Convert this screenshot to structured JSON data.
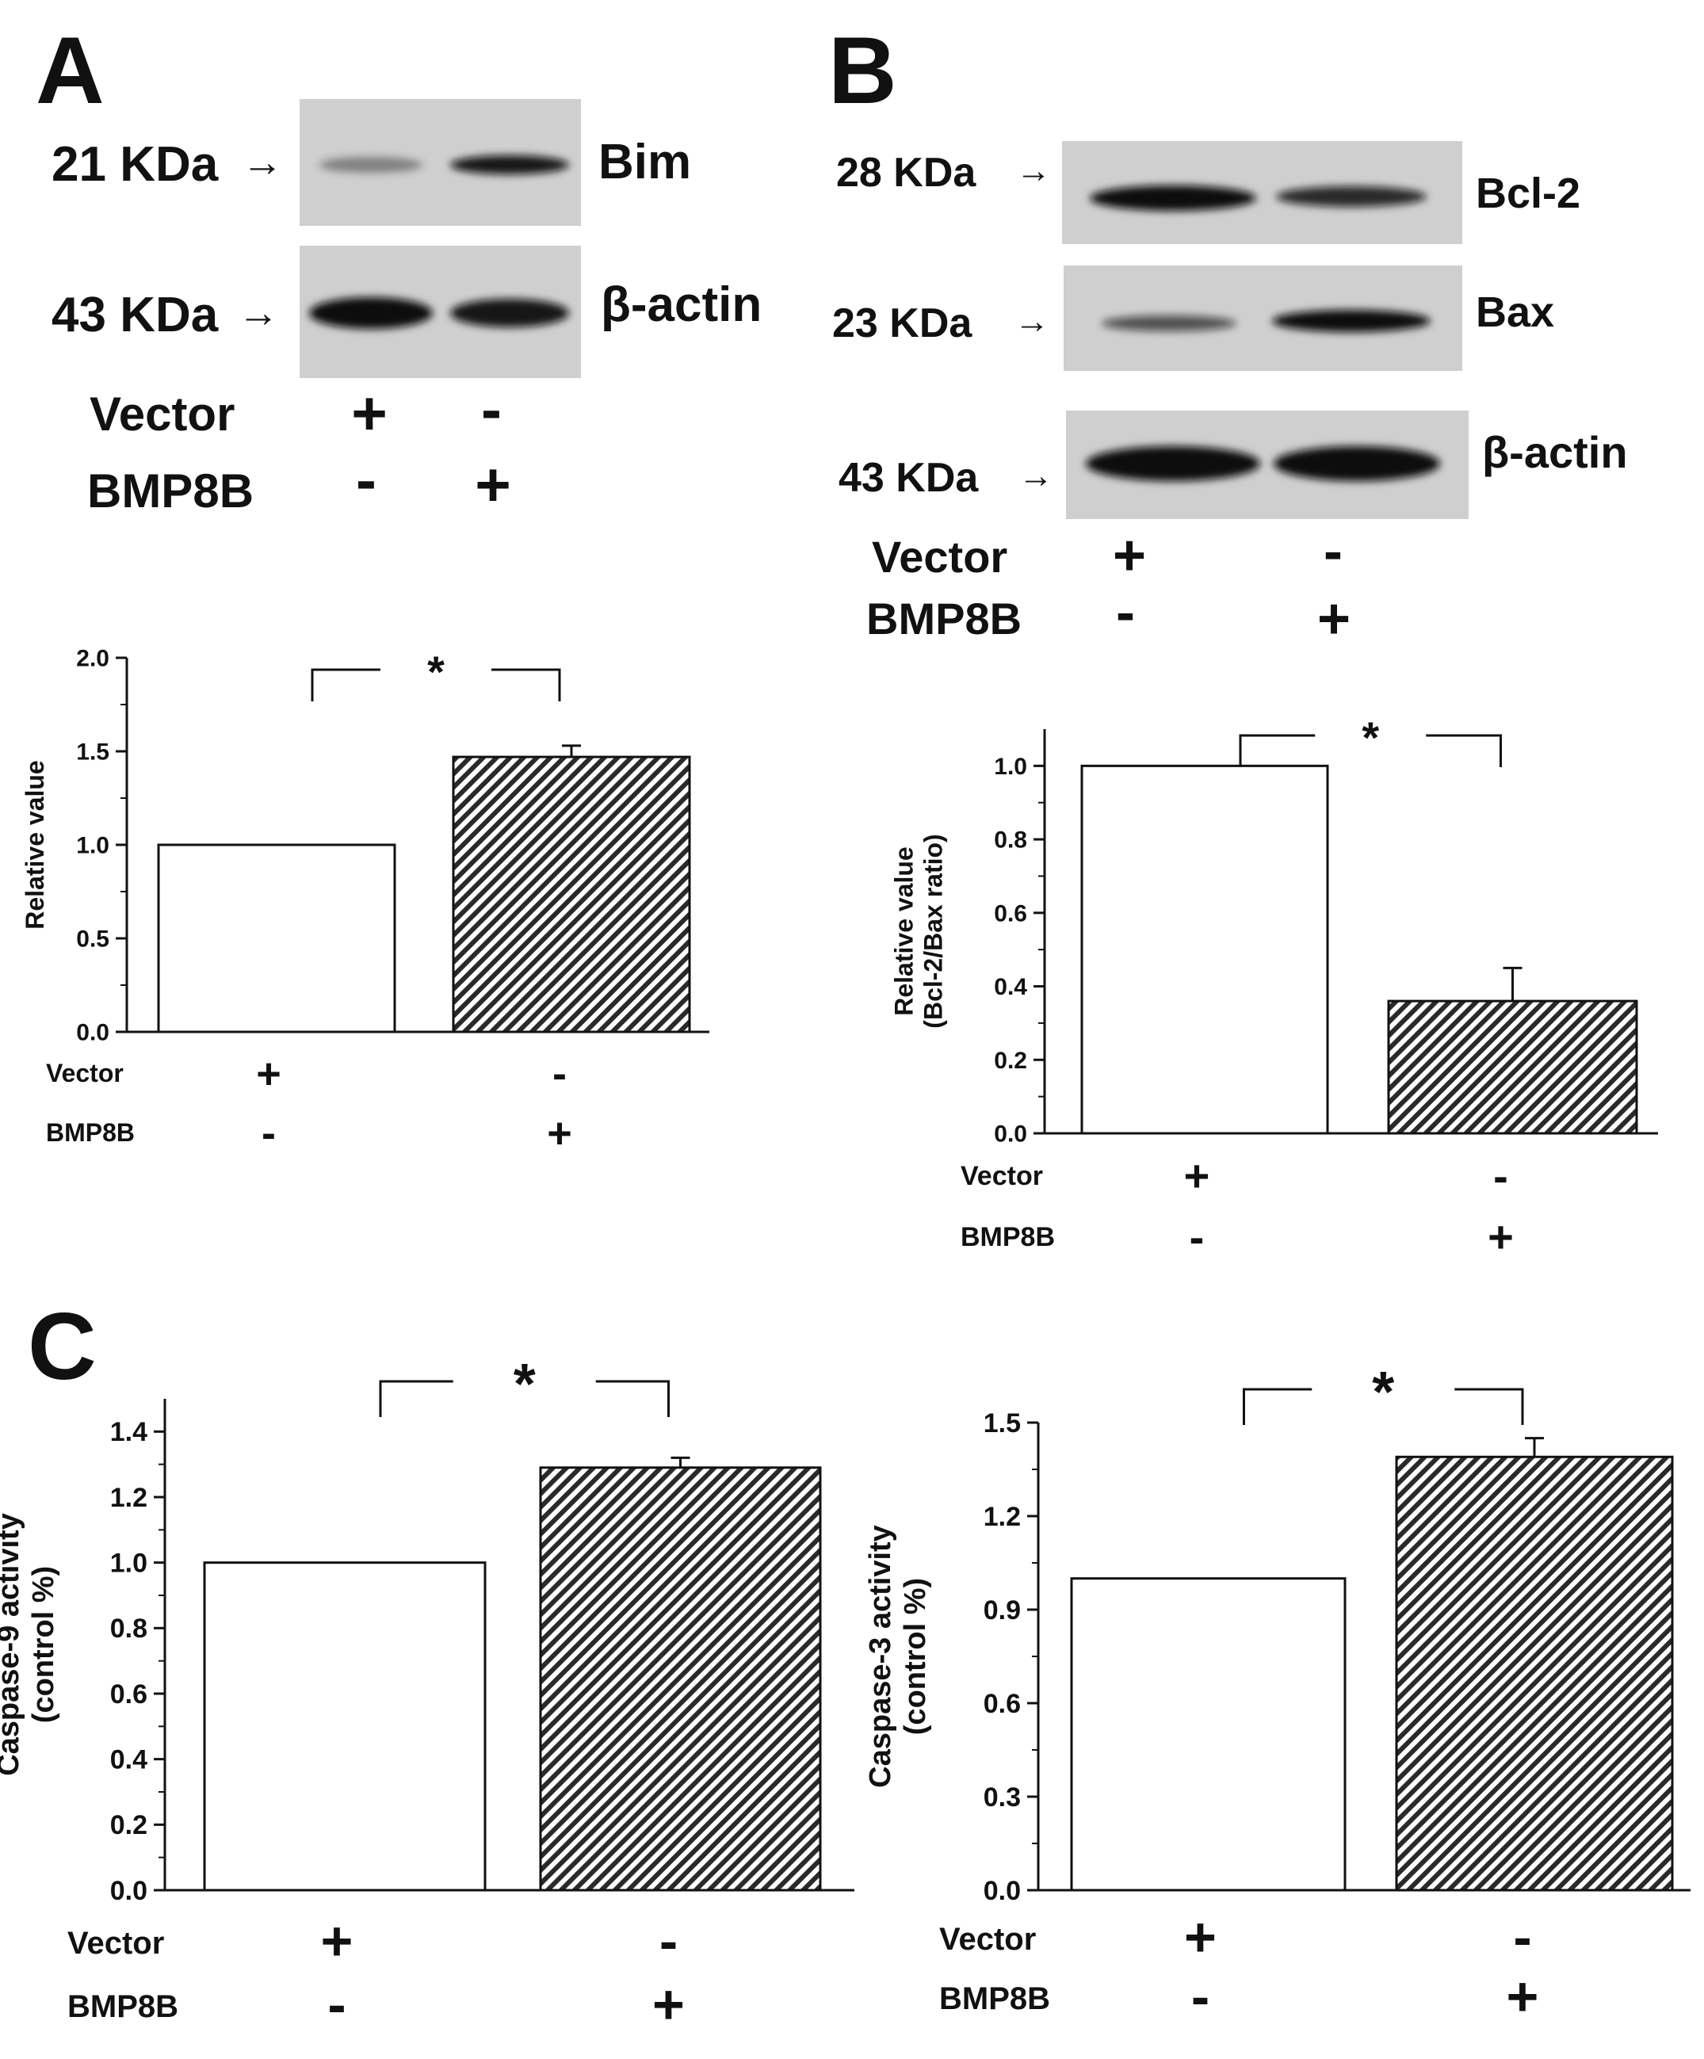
{
  "panels": {
    "A": {
      "letter": "A",
      "blots": [
        {
          "size": "21 KDa",
          "protein": "Bim",
          "bands": [
            0.45,
            1.0
          ]
        },
        {
          "size": "43 KDa",
          "protein": "β-actin",
          "bands": [
            1.0,
            0.95
          ]
        }
      ],
      "vector_label": "Vector",
      "bmp_label": "BMP8B",
      "vector_signs": [
        "+",
        "-"
      ],
      "bmp_signs": [
        "-",
        "+"
      ]
    },
    "B": {
      "letter": "B",
      "blots": [
        {
          "size": "28 KDa",
          "protein": "Bcl-2",
          "bands": [
            1.0,
            0.7
          ]
        },
        {
          "size": "23 KDa",
          "protein": "Bax",
          "bands": [
            0.6,
            1.0
          ]
        },
        {
          "size": "43 KDa",
          "protein": "β-actin",
          "bands": [
            1.0,
            1.0
          ]
        }
      ],
      "vector_label": "Vector",
      "bmp_label": "BMP8B",
      "vector_signs": [
        "+",
        "-"
      ],
      "bmp_signs": [
        "-",
        "+"
      ]
    },
    "C": {
      "letter": "C"
    }
  },
  "chart_data": [
    {
      "id": "A",
      "type": "bar",
      "ylabel": [
        "Relative value"
      ],
      "ylim": [
        0,
        2.0
      ],
      "yticks": [
        "0.0",
        "0.5",
        "1.0",
        "1.5",
        "2.0"
      ],
      "categories": [
        "Vector",
        "BMP8B"
      ],
      "values": [
        1.0,
        1.47
      ],
      "errors": [
        0,
        0.06
      ],
      "fills": [
        "white",
        "hatched"
      ],
      "significance": "*",
      "row_labels": [
        "Vector",
        "BMP8B"
      ],
      "vector_signs": [
        "+",
        "-"
      ],
      "bmp_signs": [
        "-",
        "+"
      ]
    },
    {
      "id": "B",
      "type": "bar",
      "ylabel": [
        "Relative value",
        "(Bcl-2/Bax ratio)"
      ],
      "ylim": [
        0,
        1.1
      ],
      "yticks": [
        "0.0",
        "0.2",
        "0.4",
        "0.6",
        "0.8",
        "1.0"
      ],
      "categories": [
        "Vector",
        "BMP8B"
      ],
      "values": [
        1.0,
        0.36
      ],
      "errors": [
        0,
        0.09
      ],
      "fills": [
        "white",
        "hatched"
      ],
      "significance": "*",
      "row_labels": [
        "Vector",
        "BMP8B"
      ],
      "vector_signs": [
        "+",
        "-"
      ],
      "bmp_signs": [
        "-",
        "+"
      ]
    },
    {
      "id": "C1",
      "type": "bar",
      "ylabel": [
        "Caspase-9 activity",
        "(control %)"
      ],
      "ylim": [
        0,
        1.5
      ],
      "yticks": [
        "0.0",
        "0.2",
        "0.4",
        "0.6",
        "0.8",
        "1.0",
        "1.2",
        "1.4"
      ],
      "categories": [
        "Vector",
        "BMP8B"
      ],
      "values": [
        1.0,
        1.29
      ],
      "errors": [
        0,
        0.03
      ],
      "fills": [
        "white",
        "hatched"
      ],
      "significance": "*",
      "row_labels": [
        "Vector",
        "BMP8B"
      ],
      "vector_signs": [
        "+",
        "-"
      ],
      "bmp_signs": [
        "-",
        "+"
      ]
    },
    {
      "id": "C2",
      "type": "bar",
      "ylabel": [
        "Caspase-3 activity",
        "(control %)"
      ],
      "ylim": [
        0,
        1.5
      ],
      "yticks": [
        "0.0",
        "0.3",
        "0.6",
        "0.9",
        "1.2",
        "1.5"
      ],
      "categories": [
        "Vector",
        "BMP8B"
      ],
      "values": [
        1.0,
        1.39
      ],
      "errors": [
        0,
        0.06
      ],
      "fills": [
        "white",
        "hatched"
      ],
      "significance": "*",
      "row_labels": [
        "Vector",
        "BMP8B"
      ],
      "vector_signs": [
        "+",
        "-"
      ],
      "bmp_signs": [
        "-",
        "+"
      ]
    }
  ]
}
